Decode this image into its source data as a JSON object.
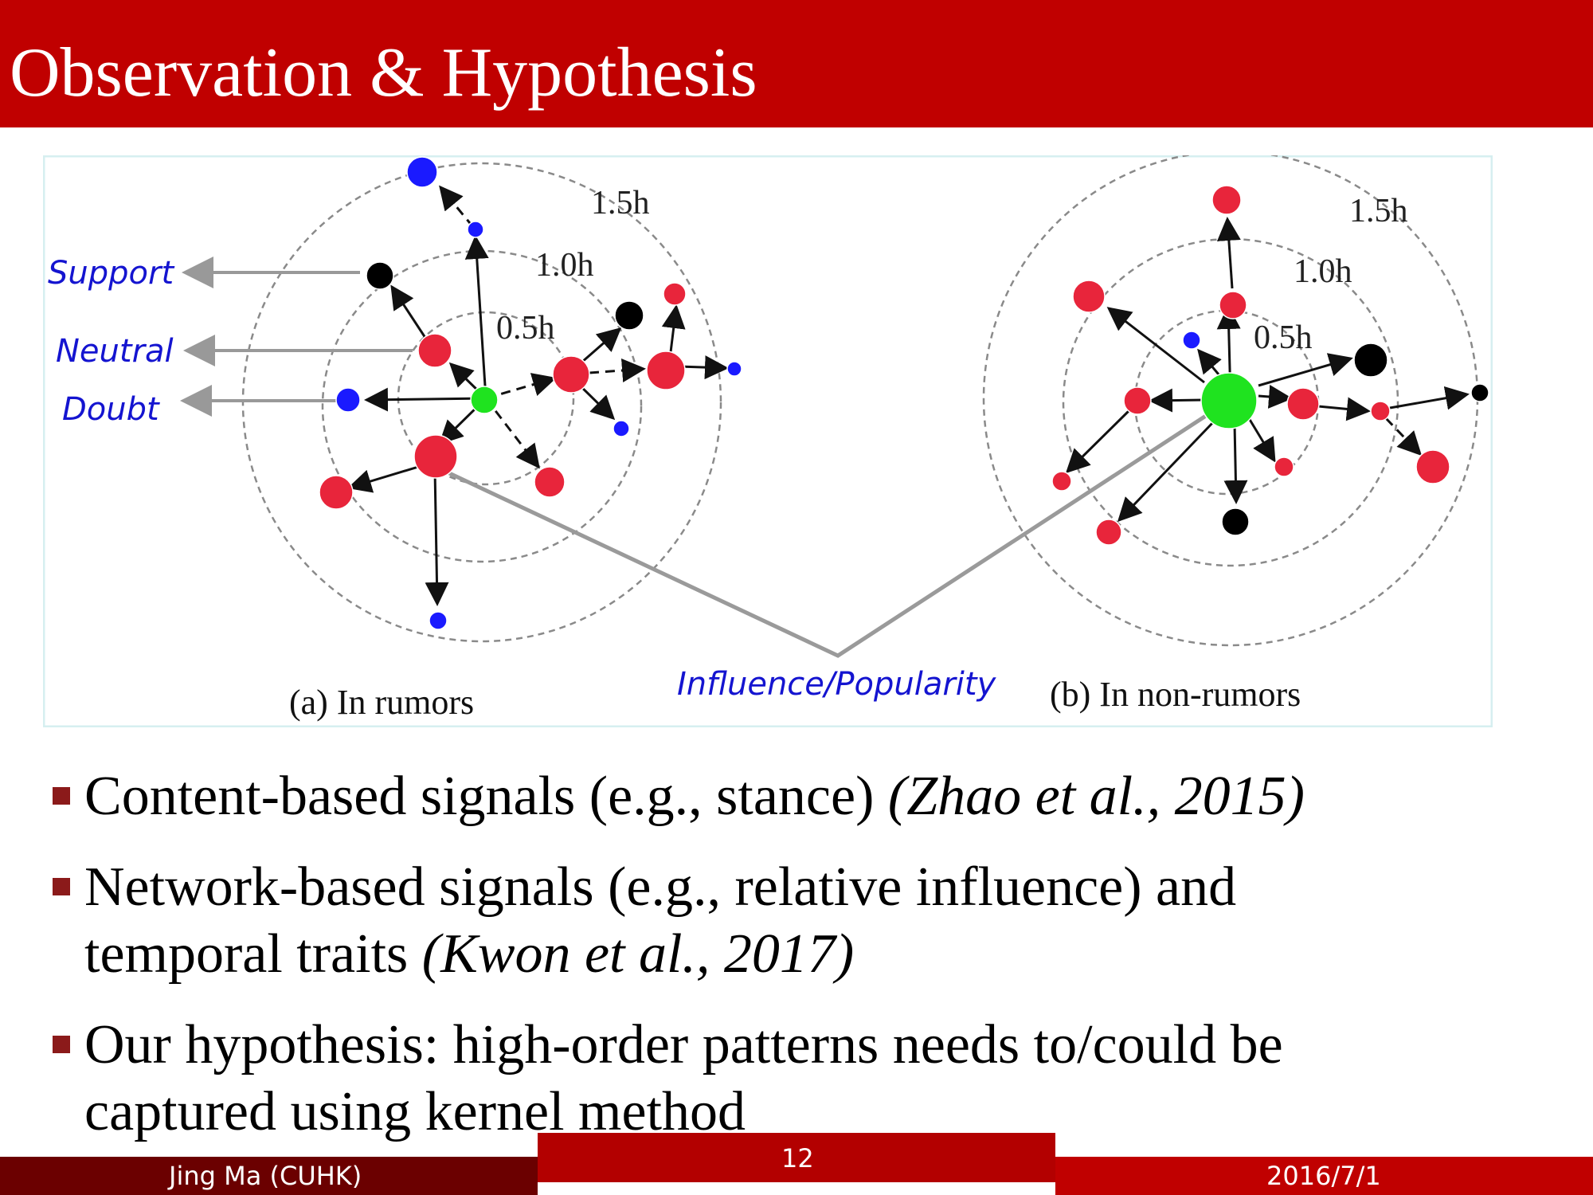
{
  "slide": {
    "title": "Observation & Hypothesis"
  },
  "figure": {
    "legend": {
      "support": "Support",
      "neutral": "Neutral",
      "doubt": "Doubt"
    },
    "rings": [
      "0.5h",
      "1.0h",
      "1.5h"
    ],
    "caption_a": "(a) In rumors",
    "caption_b": "(b) In non-rumors",
    "influence_label": "Influence/Popularity",
    "colors": {
      "support": "#0000ff",
      "neutral": "#000000",
      "doubt": "#e8253b",
      "source": "#1fe31f",
      "label": "#1414d0"
    }
  },
  "bullets": [
    {
      "text": "Content-based signals (e.g., stance) ",
      "cite": "(Zhao et al., 2015)"
    },
    {
      "text": "Network-based signals (e.g., relative influence) and",
      "text2": "temporal traits ",
      "cite": "(Kwon et al., 2017)"
    },
    {
      "text": "Our hypothesis: high-order patterns needs to/could be",
      "text2": "captured using kernel method"
    }
  ],
  "footer": {
    "author": "Jing Ma (CUHK)",
    "page": "12",
    "date": "2016/7/1"
  }
}
